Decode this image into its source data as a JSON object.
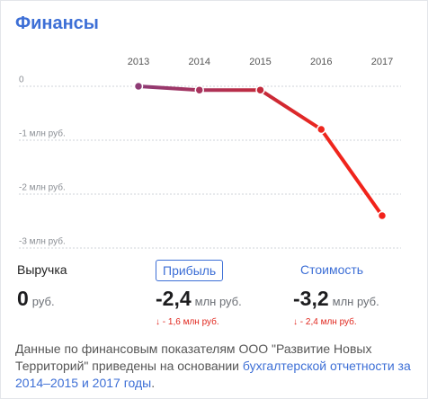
{
  "header": {
    "title": "Финансы"
  },
  "chart_data": {
    "type": "line",
    "categories": [
      "2013",
      "2014",
      "2015",
      "2016",
      "2017"
    ],
    "series": [
      {
        "name": "Прибыль",
        "color": "#f0271d",
        "colors": [
          "#8e3b75",
          "#a8345e",
          "#c22a3c",
          "#ee261d",
          "#f2221a"
        ],
        "values": [
          0,
          -0.07,
          -0.07,
          -0.8,
          -2.4
        ]
      }
    ],
    "ylim": [
      -3,
      0
    ],
    "yticks": [
      0,
      {
        "value": -1,
        "label": "-1 млн руб."
      },
      {
        "value": -2,
        "label": "-2 млн руб."
      },
      {
        "value": -3,
        "label": "-3 млн руб."
      }
    ],
    "grid": true
  },
  "metrics": [
    {
      "label": "Выручка",
      "value": "0",
      "unit": "руб."
    },
    {
      "label": "Прибыль",
      "value": "-2,4",
      "unit": "млн руб.",
      "change": "↓ - 1,6 млн руб."
    },
    {
      "label": "Стоимость",
      "value": "-3,2",
      "unit": "млн руб.",
      "change": "↓ - 2,4 млн руб."
    }
  ],
  "footer": {
    "text": "Данные по финансовым показателям ООО \"Развитие Новых Территорий\" приведены на основании ",
    "link": "бухгалтерской отчетности за 2014–2015 и 2017 годы",
    "end": "."
  }
}
